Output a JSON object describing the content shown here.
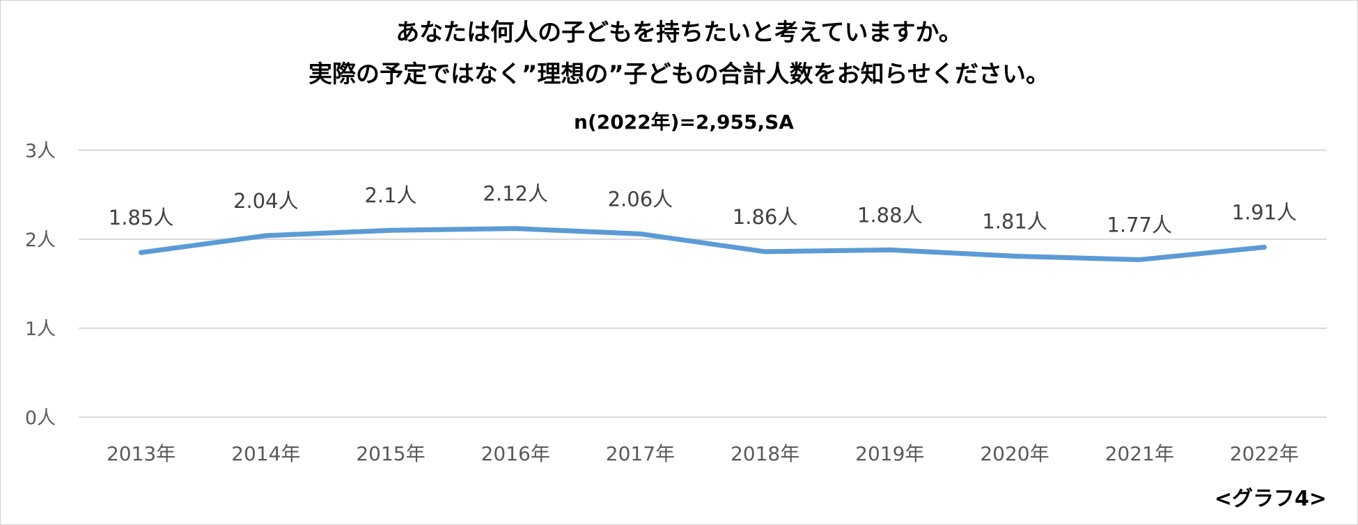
{
  "chart_data": {
    "type": "line",
    "title_line1": "あなたは何人の子どもを持ちたいと考えていますか。",
    "title_line2": "実際の予定ではなく”理想の”子どもの合計人数をお知らせください。",
    "subtitle": "n(2022年)=2,955,SA",
    "x": [
      "2013年",
      "2014年",
      "2015年",
      "2016年",
      "2017年",
      "2018年",
      "2019年",
      "2020年",
      "2021年",
      "2022年"
    ],
    "series": [
      {
        "values": [
          1.85,
          2.04,
          2.1,
          2.12,
          2.06,
          1.86,
          1.88,
          1.81,
          1.77,
          1.91
        ],
        "labels": [
          "1.85人",
          "2.04人",
          "2.1人",
          "2.12人",
          "2.06人",
          "1.86人",
          "1.88人",
          "1.81人",
          "1.77人",
          "1.91人"
        ],
        "color": "#5b9bd5"
      }
    ],
    "yticks": [
      0,
      1,
      2,
      3
    ],
    "ytick_labels": [
      "0人",
      "1人",
      "2人",
      "3人"
    ],
    "ylim": [
      0,
      3
    ],
    "grid": true,
    "legend": "none",
    "footnote": "<グラフ4>"
  },
  "colors": {
    "line": "#5b9bd5",
    "grid": "#d9d9d9",
    "tick": "#595959",
    "label": "#404040"
  }
}
